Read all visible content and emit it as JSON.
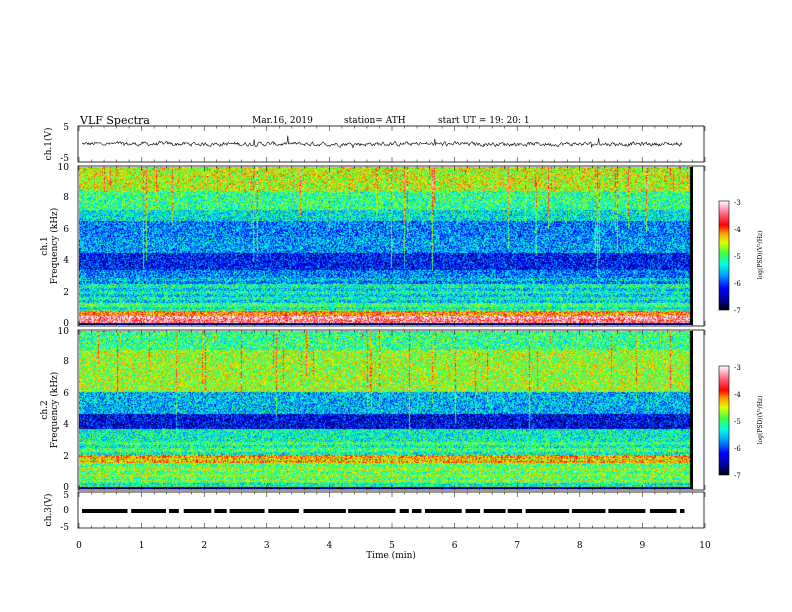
{
  "header": {
    "title": "VLF  Spectra",
    "date": "Mar.16, 2019",
    "station": "station= ATH",
    "start": "start  UT =    19: 20: 1"
  },
  "chart_data": [
    {
      "type": "line",
      "panel": "ch1",
      "ylabel": "ch.1(V)",
      "ylim": [
        -5,
        5
      ],
      "yticks": [
        "5",
        "-5"
      ],
      "xlim": [
        0,
        10
      ],
      "series": [
        {
          "values": "waveform near 0 V, amplitude about ±0.7 V"
        }
      ]
    },
    {
      "type": "heatmap",
      "panel": "ch1-spectrogram",
      "ylabel": "ch.1\nFrequency (kHz)",
      "ylim": [
        0,
        10
      ],
      "yticks": [
        "0",
        "2",
        "4",
        "6",
        "8",
        "10"
      ],
      "xlim": [
        0,
        9.8
      ],
      "colorbar": {
        "label": "log(PSD)(V²/Hz)",
        "range": [
          -7,
          -3
        ],
        "ticks": [
          "-3",
          "-4",
          "-5",
          "-6",
          "-7"
        ]
      },
      "bands": [
        {
          "from": 0.0,
          "to": 0.15,
          "level": -7
        },
        {
          "from": 0.15,
          "to": 0.6,
          "level": -3.5
        },
        {
          "from": 0.6,
          "to": 0.9,
          "level": -4.2
        },
        {
          "from": 0.9,
          "to": 1.4,
          "level": -5.3
        },
        {
          "from": 1.4,
          "to": 2.6,
          "level": -5.5
        },
        {
          "from": 2.6,
          "to": 3.5,
          "level": -5.8
        },
        {
          "from": 3.5,
          "to": 4.6,
          "level": -6.2
        },
        {
          "from": 4.6,
          "to": 5.6,
          "level": -5.7
        },
        {
          "from": 5.6,
          "to": 6.6,
          "level": -5.8
        },
        {
          "from": 6.6,
          "to": 7.3,
          "level": -5.4
        },
        {
          "from": 7.3,
          "to": 8.5,
          "level": -5.1
        },
        {
          "from": 8.5,
          "to": 10.0,
          "level": -4.6
        }
      ]
    },
    {
      "type": "heatmap",
      "panel": "ch2-spectrogram",
      "ylabel": "ch.2\nFrequency (kHz)",
      "ylim": [
        0,
        10
      ],
      "yticks": [
        "0",
        "2",
        "4",
        "6",
        "8",
        "10"
      ],
      "xlim": [
        0,
        9.8
      ],
      "colorbar": {
        "label": "log(PSD)(V²/Hz)",
        "range": [
          -7,
          -3
        ],
        "ticks": [
          "-3",
          "-4",
          "-5",
          "-6",
          "-7"
        ]
      },
      "bands": [
        {
          "from": 0.0,
          "to": 0.15,
          "level": -7
        },
        {
          "from": 0.15,
          "to": 0.5,
          "level": -5.3
        },
        {
          "from": 0.5,
          "to": 1.7,
          "level": -5.0
        },
        {
          "from": 1.7,
          "to": 2.2,
          "level": -4.4
        },
        {
          "from": 2.2,
          "to": 3.8,
          "level": -5.3
        },
        {
          "from": 3.8,
          "to": 4.8,
          "level": -6.3
        },
        {
          "from": 4.8,
          "to": 6.2,
          "level": -5.6
        },
        {
          "from": 6.2,
          "to": 8.8,
          "level": -4.7
        },
        {
          "from": 8.8,
          "to": 10.0,
          "level": -5.1
        }
      ]
    },
    {
      "type": "line",
      "panel": "ch3",
      "ylabel": "ch.3(V)",
      "ylim": [
        -5,
        5
      ],
      "yticks": [
        "5",
        "0",
        "-5"
      ],
      "xlim": [
        0,
        10
      ],
      "series": [
        {
          "values": "square pulse train at about 0 V"
        }
      ]
    }
  ],
  "xaxis": {
    "label": "Time  (min)",
    "ticks": [
      "0",
      "1",
      "2",
      "3",
      "4",
      "5",
      "6",
      "7",
      "8",
      "9",
      "10"
    ]
  }
}
